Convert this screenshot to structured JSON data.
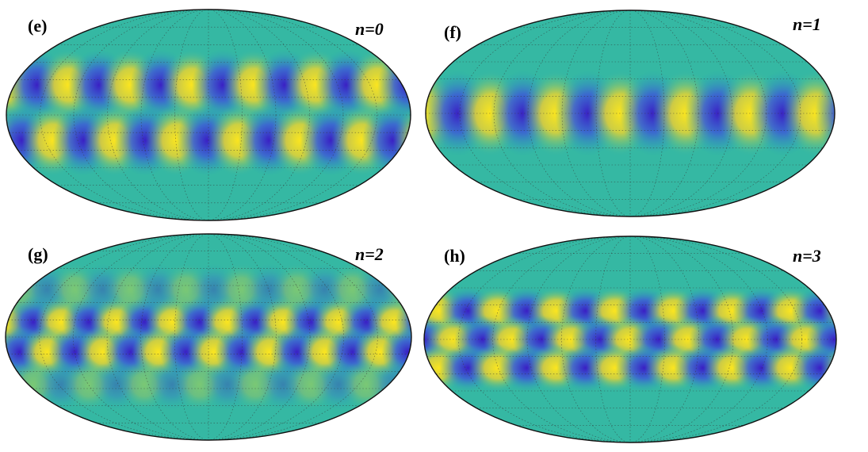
{
  "panels": [
    {
      "label": "(e)",
      "mode": "n=0"
    },
    {
      "label": "(f)",
      "mode": "n=1"
    },
    {
      "label": "(g)",
      "mode": "n=2"
    },
    {
      "label": "(h)",
      "mode": "n=3"
    }
  ]
}
